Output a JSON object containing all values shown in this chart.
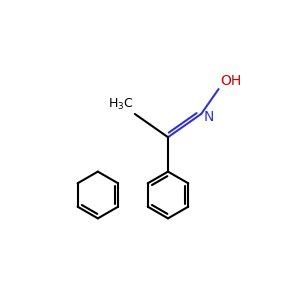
{
  "background_color": "#ffffff",
  "bond_color": "#000000",
  "N_color": "#3333cc",
  "O_color": "#cc0000",
  "lw": 1.5,
  "lw_double": 1.5,
  "figsize": [
    3.0,
    3.0
  ],
  "dpi": 100
}
